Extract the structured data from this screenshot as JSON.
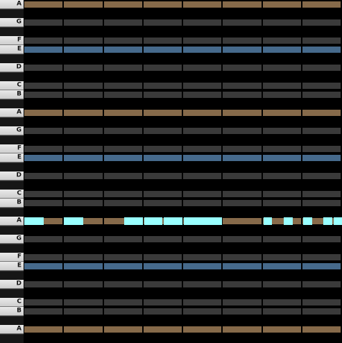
{
  "piano_roll": {
    "keyboard_labels": [
      "A",
      "G",
      "F",
      "E",
      "D",
      "C",
      "B",
      "A",
      "G",
      "F",
      "E",
      "D",
      "C",
      "B",
      "A",
      "G",
      "F",
      "E",
      "D",
      "C",
      "B",
      "A"
    ],
    "colors": {
      "background": "#000000",
      "row_default": "#3a3a3a",
      "row_A": "#866a4a",
      "row_E": "#466a8c",
      "note": "#99ffff"
    },
    "octave_rows": [
      "A",
      "G#",
      "G",
      "F#",
      "F",
      "E",
      "D#",
      "D",
      "C#",
      "C",
      "B",
      "A#"
    ],
    "measure_columns": 8
  }
}
